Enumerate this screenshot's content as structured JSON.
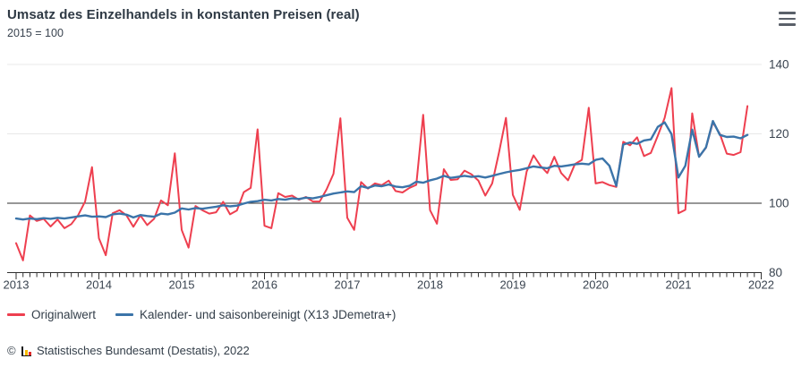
{
  "header": {
    "title": "Umsatz des Einzelhandels in konstanten Preisen (real)",
    "subtitle": "2015 = 100"
  },
  "menu": {
    "icon": "hamburger-menu-icon"
  },
  "legend": [
    {
      "label": "Originalwert",
      "color": "#ee3f4f"
    },
    {
      "label": "Kalender- und saisonbereinigt (X13 JDemetra+)",
      "color": "#3b74a9"
    }
  ],
  "footer": {
    "copyright": "©",
    "logo_icon": "destatis-bars-icon",
    "credit": "Statistisches Bundesamt (Destatis), 2022"
  },
  "chart_data": {
    "type": "line",
    "title": "Umsatz des Einzelhandels in konstanten Preisen (real)",
    "subtitle": "2015 = 100",
    "frequency": "monthly",
    "x_start": "2013-01",
    "x_end": "2021-11",
    "x_tick_labels": [
      "2013",
      "2014",
      "2015",
      "2016",
      "2017",
      "2018",
      "2019",
      "2020",
      "2021",
      "2022"
    ],
    "ylim": [
      80,
      140
    ],
    "yticks": [
      80,
      100,
      120,
      140
    ],
    "reference_line": 100,
    "grid": "horizontal-light",
    "legend_position": "bottom-left",
    "series": [
      {
        "name": "Originalwert",
        "color": "#ee3f4f",
        "values": [
          88.5,
          83.5,
          96.5,
          94.9,
          95.5,
          93.3,
          95.3,
          92.8,
          94.0,
          96.6,
          100.5,
          110.4,
          89.9,
          85.0,
          97.1,
          98.0,
          96.5,
          93.2,
          96.5,
          93.7,
          95.5,
          100.8,
          99.4,
          114.4,
          92.3,
          87.2,
          99.2,
          98.0,
          97.0,
          97.4,
          100.4,
          96.8,
          97.9,
          103.2,
          104.4,
          121.3,
          93.5,
          92.8,
          102.9,
          101.8,
          102.2,
          101.0,
          101.8,
          100.5,
          100.5,
          104.0,
          108.5,
          124.5,
          95.8,
          92.3,
          106.1,
          104.2,
          105.7,
          105.2,
          106.5,
          103.5,
          103.1,
          104.4,
          105.3,
          125.5,
          98.0,
          94.1,
          109.8,
          106.7,
          106.9,
          109.4,
          108.3,
          106.5,
          102.2,
          105.7,
          114.7,
          124.6,
          102.4,
          98.1,
          109.1,
          113.8,
          110.8,
          108.7,
          113.4,
          108.7,
          106.6,
          111.3,
          112.5,
          127.5,
          105.7,
          106.1,
          105.2,
          104.7,
          117.7,
          116.7,
          119.0,
          113.6,
          114.5,
          119.4,
          124.6,
          133.2,
          97.1,
          98.1,
          125.9,
          113.4,
          116.0,
          123.3,
          120.0,
          114.3,
          113.9,
          114.7,
          128.0
        ]
      },
      {
        "name": "Kalender- und saisonbereinigt (X13 JDemetra+)",
        "color": "#3b74a9",
        "values": [
          95.6,
          95.3,
          95.6,
          95.4,
          95.7,
          95.5,
          95.8,
          95.6,
          95.9,
          96.2,
          96.5,
          96.1,
          96.2,
          96.0,
          96.8,
          97.0,
          96.7,
          95.9,
          96.6,
          96.3,
          96.1,
          97.0,
          96.8,
          97.3,
          98.5,
          98.2,
          98.6,
          98.4,
          98.7,
          99.0,
          99.4,
          99.1,
          99.3,
          99.9,
          100.4,
          100.6,
          101.0,
          100.8,
          101.2,
          101.0,
          101.4,
          101.2,
          101.6,
          101.4,
          101.8,
          102.3,
          102.8,
          103.1,
          103.4,
          103.2,
          104.9,
          104.4,
          105.1,
          104.9,
          105.4,
          104.8,
          104.6,
          105.0,
          106.2,
          105.9,
          106.6,
          107.1,
          107.9,
          107.3,
          107.6,
          107.9,
          107.6,
          107.8,
          107.4,
          107.9,
          108.4,
          108.9,
          109.3,
          109.6,
          110.1,
          110.6,
          110.3,
          110.1,
          110.8,
          110.6,
          110.9,
          111.2,
          111.4,
          111.2,
          112.5,
          112.9,
          110.8,
          105.0,
          116.9,
          117.5,
          117.1,
          118.1,
          118.4,
          122.0,
          123.3,
          119.9,
          107.4,
          110.8,
          121.2,
          113.4,
          116.1,
          123.7,
          119.7,
          119.1,
          119.2,
          118.7,
          119.7
        ]
      }
    ]
  }
}
